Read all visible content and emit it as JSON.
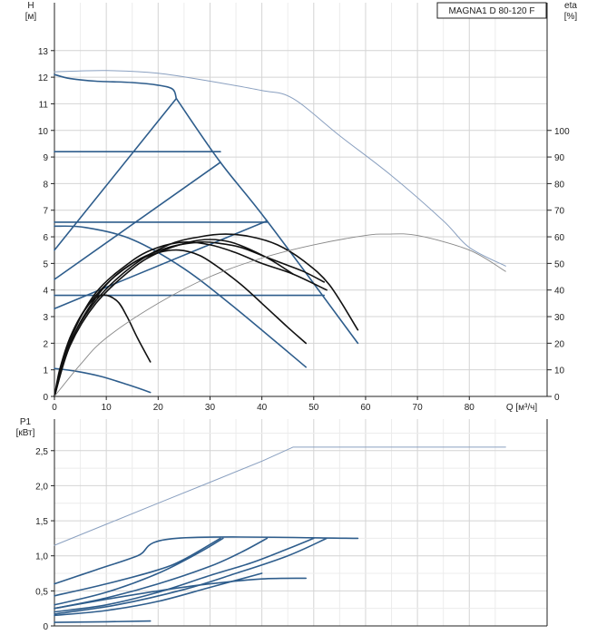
{
  "colors": {
    "curve_blue": "#2e5d8c",
    "light_blue": "#8aa0c0",
    "efficiency_black": "#111111",
    "efficiency_gray": "#888888",
    "grid": "#d4d4d4",
    "axis": "#222222"
  },
  "chart_data": [
    {
      "type": "line",
      "title": "MAGNA1 D 80-120 F",
      "ylabel": "H",
      "yunit": "[м]",
      "y2label": "eta",
      "y2unit": "[%]",
      "xlabel": "Q [м³/ч]",
      "xlim": [
        0,
        95
      ],
      "ylim": [
        0,
        14.8
      ],
      "y2lim": [
        0,
        148
      ],
      "grid": true,
      "xticks": [
        "0",
        "10",
        "20",
        "30",
        "40",
        "50",
        "60",
        "70",
        "80"
      ],
      "yticks": [
        "0",
        "1",
        "2",
        "3",
        "4",
        "5",
        "6",
        "7",
        "8",
        "9",
        "10",
        "11",
        "12",
        "13"
      ],
      "y2ticks": [
        "0",
        "10",
        "20",
        "30",
        "40",
        "50",
        "60",
        "70",
        "80",
        "90",
        "100"
      ],
      "series": [
        {
          "group": "head",
          "axis": "left",
          "style": "curve_blue",
          "x": [
            0,
            3,
            8,
            15,
            20,
            22.8,
            23.5
          ],
          "y": [
            12.1,
            11.95,
            11.85,
            11.8,
            11.7,
            11.55,
            11.2
          ]
        },
        {
          "group": "head",
          "axis": "left",
          "style": "curve_blue",
          "x": [
            23.5,
            32,
            41,
            58.5
          ],
          "y": [
            11.2,
            8.8,
            6.6,
            2.0
          ]
        },
        {
          "group": "head",
          "axis": "left",
          "style": "curve_blue",
          "x": [
            0,
            32
          ],
          "y": [
            9.2,
            9.2
          ]
        },
        {
          "group": "head",
          "axis": "left",
          "style": "curve_blue",
          "x": [
            0,
            41
          ],
          "y": [
            6.55,
            6.55
          ]
        },
        {
          "group": "head",
          "axis": "left",
          "style": "curve_blue",
          "x": [
            0,
            52
          ],
          "y": [
            3.8,
            3.8
          ]
        },
        {
          "group": "head",
          "axis": "left",
          "style": "curve_blue",
          "x": [
            0,
            23.5
          ],
          "y": [
            5.5,
            11.2
          ]
        },
        {
          "group": "head",
          "axis": "left",
          "style": "curve_blue",
          "x": [
            0,
            32
          ],
          "y": [
            4.4,
            8.8
          ]
        },
        {
          "group": "head",
          "axis": "left",
          "style": "curve_blue",
          "x": [
            0,
            41
          ],
          "y": [
            3.3,
            6.6
          ]
        },
        {
          "group": "head",
          "axis": "left",
          "style": "curve_blue",
          "x": [
            0,
            6,
            15,
            25,
            35,
            48.5
          ],
          "y": [
            6.4,
            6.35,
            5.9,
            4.8,
            3.3,
            1.1
          ]
        },
        {
          "group": "head",
          "axis": "left",
          "style": "curve_blue",
          "x": [
            0,
            4,
            9,
            14,
            18.5
          ],
          "y": [
            1.05,
            0.95,
            0.75,
            0.45,
            0.15
          ]
        },
        {
          "group": "head",
          "axis": "left",
          "style": "light_blue",
          "x": [
            0,
            10,
            20,
            30,
            40,
            46,
            55,
            65,
            75,
            80,
            87
          ],
          "y": [
            12.2,
            12.25,
            12.15,
            11.85,
            11.5,
            11.2,
            9.8,
            8.3,
            6.6,
            5.6,
            4.9
          ]
        },
        {
          "group": "efficiency",
          "axis": "right",
          "style": "efficiency_black",
          "x": [
            0,
            1,
            3,
            6,
            9,
            12,
            14,
            16,
            18.5
          ],
          "y": [
            0,
            10,
            22,
            33,
            38,
            36,
            30,
            22,
            13
          ]
        },
        {
          "group": "efficiency",
          "axis": "right",
          "style": "efficiency_black",
          "x": [
            0,
            2,
            5,
            10,
            15,
            20,
            24,
            28,
            32,
            36,
            40,
            45,
            48.5
          ],
          "y": [
            0,
            14,
            28,
            42,
            50,
            54,
            55,
            53,
            48,
            42,
            35,
            26,
            20
          ]
        },
        {
          "group": "efficiency",
          "axis": "right",
          "style": "efficiency_black",
          "x": [
            0,
            3,
            8,
            15,
            22,
            28,
            32,
            36,
            40,
            44,
            48,
            52
          ],
          "y": [
            0,
            22,
            38,
            50,
            56,
            58,
            57.5,
            56,
            53,
            50,
            47,
            43
          ]
        },
        {
          "group": "efficiency",
          "axis": "right",
          "style": "efficiency_black",
          "x": [
            0,
            3,
            8,
            15,
            22,
            28,
            33,
            38,
            43,
            48,
            53,
            58.5
          ],
          "y": [
            0,
            20,
            36,
            49,
            57,
            60,
            61,
            60,
            57,
            51,
            42,
            25
          ]
        },
        {
          "group": "efficiency",
          "axis": "right",
          "style": "efficiency_black",
          "x": [
            0,
            3,
            8,
            15,
            20,
            26,
            30,
            34,
            38,
            42,
            46
          ],
          "y": [
            0,
            19,
            35,
            48,
            54,
            58,
            59,
            58,
            55,
            51,
            46
          ]
        },
        {
          "group": "efficiency",
          "axis": "right",
          "style": "efficiency_black",
          "x": [
            0,
            3,
            8,
            15,
            20,
            25,
            30,
            35,
            40,
            46,
            52.5
          ],
          "y": [
            0,
            21,
            39,
            51,
            56,
            58,
            57,
            54,
            50,
            46,
            40
          ]
        },
        {
          "group": "efficiency",
          "axis": "right",
          "style": "efficiency_gray",
          "x": [
            0,
            5,
            10,
            20,
            30,
            40,
            50,
            60,
            64,
            70,
            80,
            87
          ],
          "y": [
            0,
            12,
            22,
            35,
            45,
            52,
            57,
            60.5,
            61,
            60.5,
            55,
            47
          ]
        }
      ]
    },
    {
      "type": "line",
      "ylabel": "P1",
      "yunit": "[кВт]",
      "xlim": [
        0,
        95
      ],
      "ylim": [
        0,
        2.95
      ],
      "grid": true,
      "yticks": [
        "0",
        "0,5",
        "1,0",
        "1,5",
        "2,0",
        "2,5"
      ],
      "series": [
        {
          "style": "light_blue",
          "x": [
            0,
            10,
            20,
            30,
            40,
            46,
            60,
            87
          ],
          "y": [
            1.15,
            1.45,
            1.75,
            2.05,
            2.35,
            2.55,
            2.55,
            2.55
          ]
        },
        {
          "style": "curve_blue",
          "x": [
            0,
            8,
            16,
            23.5,
            58.5
          ],
          "y": [
            0.6,
            0.8,
            1.0,
            1.25,
            1.25
          ]
        },
        {
          "style": "curve_blue",
          "x": [
            0,
            10,
            20,
            25,
            32
          ],
          "y": [
            0.43,
            0.6,
            0.8,
            0.95,
            1.25
          ]
        },
        {
          "style": "curve_blue",
          "x": [
            0,
            10,
            20,
            28,
            32.5
          ],
          "y": [
            0.3,
            0.48,
            0.75,
            1.05,
            1.25
          ]
        },
        {
          "style": "curve_blue",
          "x": [
            0,
            10,
            20,
            30,
            36,
            41
          ],
          "y": [
            0.25,
            0.4,
            0.6,
            0.85,
            1.05,
            1.25
          ]
        },
        {
          "style": "curve_blue",
          "x": [
            0,
            10,
            20,
            30,
            38,
            45,
            50
          ],
          "y": [
            0.2,
            0.3,
            0.48,
            0.72,
            0.9,
            1.1,
            1.25
          ]
        },
        {
          "style": "curve_blue",
          "x": [
            0,
            12,
            25,
            35,
            45,
            52.5
          ],
          "y": [
            0.17,
            0.3,
            0.52,
            0.75,
            1.0,
            1.25
          ]
        },
        {
          "style": "curve_blue",
          "x": [
            0,
            10,
            20,
            30,
            40,
            48.5
          ],
          "y": [
            0.25,
            0.38,
            0.5,
            0.6,
            0.67,
            0.68
          ]
        },
        {
          "style": "curve_blue",
          "x": [
            0,
            10,
            20,
            30,
            40
          ],
          "y": [
            0.15,
            0.22,
            0.35,
            0.55,
            0.75
          ]
        },
        {
          "style": "curve_blue",
          "x": [
            0,
            10,
            18.5
          ],
          "y": [
            0.05,
            0.06,
            0.07
          ]
        }
      ]
    }
  ]
}
